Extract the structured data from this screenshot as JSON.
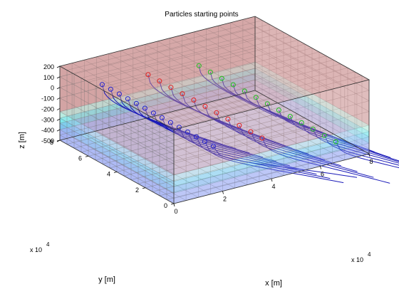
{
  "chart_data": {
    "type": "3d-line",
    "title": "Particles starting points",
    "xlabel": "x [m]",
    "ylabel": "y [m]",
    "zlabel": "z [m]",
    "x_ticks": [
      "0",
      "2",
      "4",
      "6",
      "8"
    ],
    "y_ticks": [
      "0",
      "2",
      "4",
      "6",
      "8"
    ],
    "z_ticks": [
      "200",
      "100",
      "0",
      "-100",
      "-200",
      "-300",
      "-400",
      "-500"
    ],
    "x_exponent": "x 10",
    "x_exponent_power": "4",
    "y_exponent": "x 10",
    "y_exponent_power": "4",
    "xlim": [
      0,
      80000
    ],
    "ylim": [
      0,
      80000
    ],
    "zlim": [
      -500,
      200
    ],
    "grid": "on",
    "layers": [
      {
        "z_top": 200,
        "z_bottom": -230,
        "color": "#c98c8c"
      },
      {
        "z_top": -230,
        "z_bottom": -290,
        "color": "#a8e8d8"
      },
      {
        "z_top": -290,
        "z_bottom": -340,
        "color": "#5fe0e8"
      },
      {
        "z_top": -340,
        "z_bottom": -400,
        "color": "#5fb4e8"
      },
      {
        "z_top": -400,
        "z_bottom": -500,
        "color": "#8c9ff0"
      }
    ],
    "start_series": [
      {
        "marker_color": "#2020d0",
        "x": 8000,
        "z": 100,
        "y": [
          64000,
          58000,
          52000,
          46000,
          40000,
          34000,
          28000,
          22000,
          16000,
          10000,
          4000,
          -2000,
          -8000,
          -14000
        ]
      },
      {
        "marker_color": "#e02020",
        "x": 28000,
        "z": 60,
        "y": [
          66000,
          58000,
          50000,
          42000,
          34000,
          26000,
          18000,
          10000,
          2000,
          -6000,
          -14000
        ]
      },
      {
        "marker_color": "#20c020",
        "x": 50000,
        "z": 0,
        "y": [
          68000,
          60000,
          52000,
          44000,
          36000,
          28000,
          20000,
          12000,
          4000,
          -4000,
          -12000,
          -20000,
          -28000
        ]
      }
    ],
    "line_color": "#1a1ab8"
  }
}
